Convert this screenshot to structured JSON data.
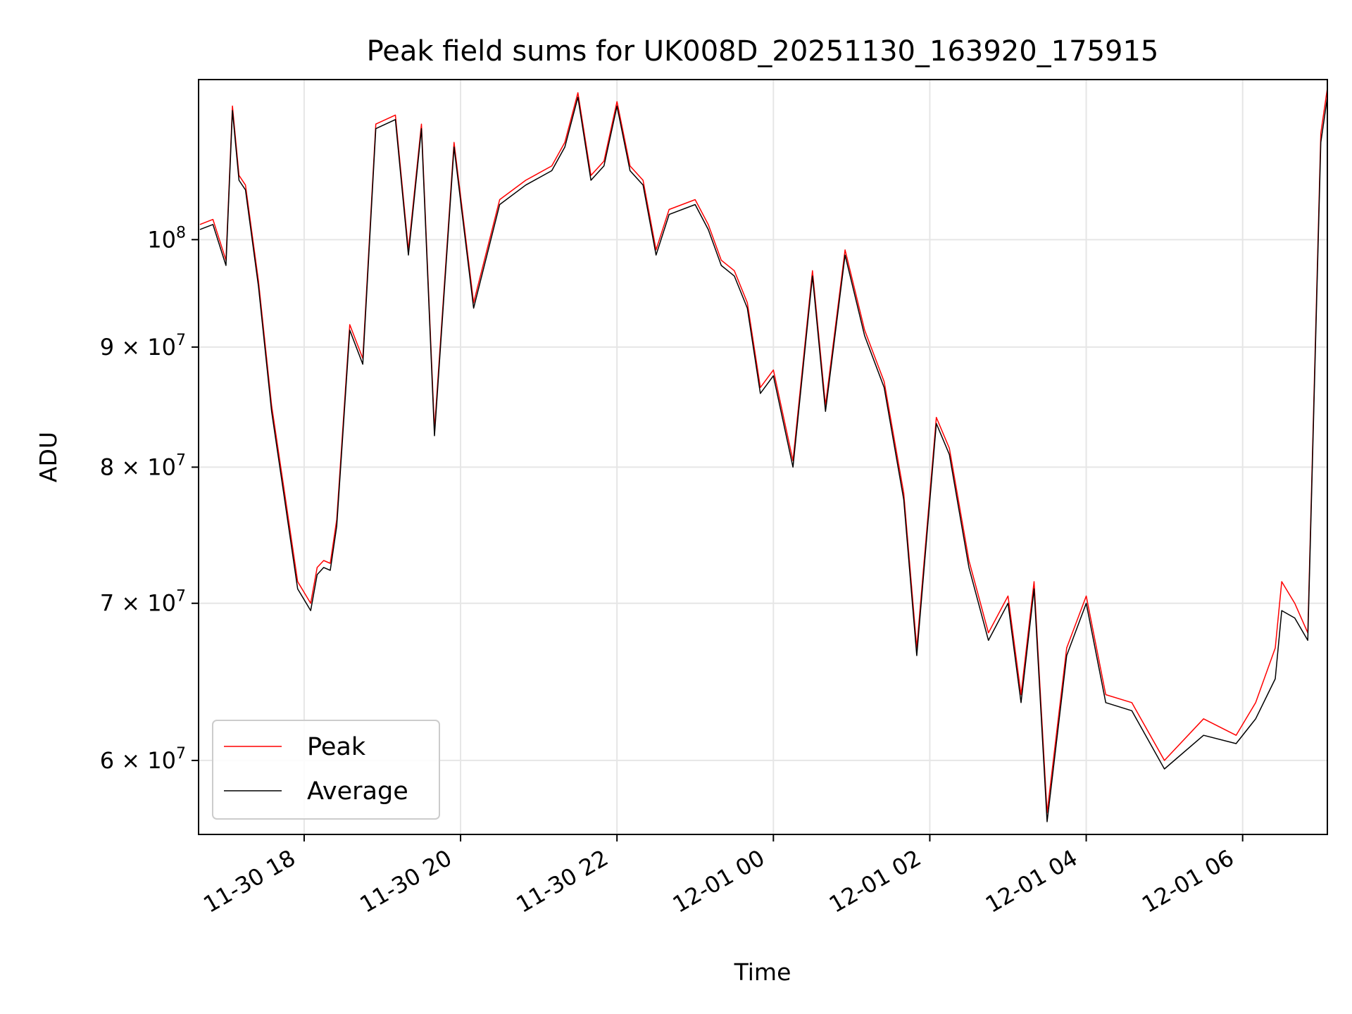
{
  "chart_data": {
    "type": "line",
    "title": "Peak field sums for UK008D_20251130_163920_175915",
    "xlabel": "Time",
    "ylabel": "ADU",
    "x_range": [
      "2025-11-30 16:39",
      "2025-12-01 07:05"
    ],
    "y_range": [
      55800000,
      117000000
    ],
    "y_scale": "log",
    "grid": true,
    "legend_position": "lower-left",
    "x_ticks": [
      {
        "value": "2025-11-30 18:00",
        "label": "11-30 18"
      },
      {
        "value": "2025-11-30 20:00",
        "label": "11-30 20"
      },
      {
        "value": "2025-11-30 22:00",
        "label": "11-30 22"
      },
      {
        "value": "2025-12-01 00:00",
        "label": "12-01 00"
      },
      {
        "value": "2025-12-01 02:00",
        "label": "12-01 02"
      },
      {
        "value": "2025-12-01 04:00",
        "label": "12-01 04"
      },
      {
        "value": "2025-12-01 06:00",
        "label": "12-01 06"
      }
    ],
    "y_ticks": [
      {
        "value": 60000000,
        "mantissa": "6",
        "base": "10",
        "exp": "7"
      },
      {
        "value": 70000000,
        "mantissa": "7",
        "base": "10",
        "exp": "7"
      },
      {
        "value": 80000000,
        "mantissa": "8",
        "base": "10",
        "exp": "7"
      },
      {
        "value": 90000000,
        "mantissa": "9",
        "base": "10",
        "exp": "7"
      },
      {
        "value": 100000000,
        "mantissa": "",
        "base": "10",
        "exp": "8"
      }
    ],
    "series": [
      {
        "name": "Peak",
        "color": "#ff0000",
        "x": [
          "2025-11-30 16:40",
          "2025-11-30 16:50",
          "2025-11-30 17:00",
          "2025-11-30 17:05",
          "2025-11-30 17:10",
          "2025-11-30 17:15",
          "2025-11-30 17:25",
          "2025-11-30 17:35",
          "2025-11-30 17:45",
          "2025-11-30 17:55",
          "2025-11-30 18:05",
          "2025-11-30 18:10",
          "2025-11-30 18:15",
          "2025-11-30 18:20",
          "2025-11-30 18:25",
          "2025-11-30 18:35",
          "2025-11-30 18:45",
          "2025-11-30 18:55",
          "2025-11-30 19:10",
          "2025-11-30 19:20",
          "2025-11-30 19:30",
          "2025-11-30 19:40",
          "2025-11-30 19:55",
          "2025-11-30 20:10",
          "2025-11-30 20:30",
          "2025-11-30 20:50",
          "2025-11-30 21:10",
          "2025-11-30 21:20",
          "2025-11-30 21:30",
          "2025-11-30 21:40",
          "2025-11-30 21:50",
          "2025-11-30 22:00",
          "2025-11-30 22:10",
          "2025-11-30 22:20",
          "2025-11-30 22:30",
          "2025-11-30 22:40",
          "2025-11-30 23:00",
          "2025-11-30 23:10",
          "2025-11-30 23:20",
          "2025-11-30 23:30",
          "2025-11-30 23:40",
          "2025-11-30 23:50",
          "2025-12-01 00:00",
          "2025-12-01 00:15",
          "2025-12-01 00:30",
          "2025-12-01 00:40",
          "2025-12-01 00:55",
          "2025-12-01 01:10",
          "2025-12-01 01:25",
          "2025-12-01 01:40",
          "2025-12-01 01:50",
          "2025-12-01 02:05",
          "2025-12-01 02:15",
          "2025-12-01 02:30",
          "2025-12-01 02:45",
          "2025-12-01 03:00",
          "2025-12-01 03:10",
          "2025-12-01 03:20",
          "2025-12-01 03:30",
          "2025-12-01 03:45",
          "2025-12-01 04:00",
          "2025-12-01 04:15",
          "2025-12-01 04:35",
          "2025-12-01 05:00",
          "2025-12-01 05:30",
          "2025-12-01 05:55",
          "2025-12-01 06:10",
          "2025-12-01 06:25",
          "2025-12-01 06:30",
          "2025-12-01 06:40",
          "2025-12-01 06:50",
          "2025-12-01 07:00",
          "2025-12-01 07:05"
        ],
        "y": [
          101500000,
          102000000,
          98000000,
          114000000,
          106500000,
          105500000,
          96000000,
          85000000,
          78000000,
          71500000,
          70000000,
          72500000,
          73000000,
          72800000,
          76000000,
          92000000,
          89000000,
          112000000,
          113000000,
          99000000,
          112000000,
          83000000,
          110000000,
          94000000,
          104000000,
          106000000,
          107500000,
          110000000,
          115500000,
          106500000,
          108000000,
          114500000,
          107500000,
          106000000,
          99000000,
          103000000,
          104000000,
          101500000,
          98000000,
          97000000,
          94000000,
          86500000,
          88000000,
          80500000,
          97000000,
          85000000,
          99000000,
          91500000,
          87000000,
          78000000,
          67000000,
          84000000,
          81500000,
          73000000,
          68000000,
          70500000,
          64000000,
          71500000,
          57000000,
          67000000,
          70500000,
          64000000,
          63500000,
          60000000,
          62500000,
          61500000,
          63500000,
          67000000,
          71500000,
          70000000,
          68000000,
          111000000,
          116000000
        ]
      },
      {
        "name": "Average",
        "color": "#000000",
        "x": [
          "2025-11-30 16:40",
          "2025-11-30 16:50",
          "2025-11-30 17:00",
          "2025-11-30 17:05",
          "2025-11-30 17:10",
          "2025-11-30 17:15",
          "2025-11-30 17:25",
          "2025-11-30 17:35",
          "2025-11-30 17:45",
          "2025-11-30 17:55",
          "2025-11-30 18:05",
          "2025-11-30 18:10",
          "2025-11-30 18:15",
          "2025-11-30 18:20",
          "2025-11-30 18:25",
          "2025-11-30 18:35",
          "2025-11-30 18:45",
          "2025-11-30 18:55",
          "2025-11-30 19:10",
          "2025-11-30 19:20",
          "2025-11-30 19:30",
          "2025-11-30 19:40",
          "2025-11-30 19:55",
          "2025-11-30 20:10",
          "2025-11-30 20:30",
          "2025-11-30 20:50",
          "2025-11-30 21:10",
          "2025-11-30 21:20",
          "2025-11-30 21:30",
          "2025-11-30 21:40",
          "2025-11-30 21:50",
          "2025-11-30 22:00",
          "2025-11-30 22:10",
          "2025-11-30 22:20",
          "2025-11-30 22:30",
          "2025-11-30 22:40",
          "2025-11-30 23:00",
          "2025-11-30 23:10",
          "2025-11-30 23:20",
          "2025-11-30 23:30",
          "2025-11-30 23:40",
          "2025-11-30 23:50",
          "2025-12-01 00:00",
          "2025-12-01 00:15",
          "2025-12-01 00:30",
          "2025-12-01 00:40",
          "2025-12-01 00:55",
          "2025-12-01 01:10",
          "2025-12-01 01:25",
          "2025-12-01 01:40",
          "2025-12-01 01:50",
          "2025-12-01 02:05",
          "2025-12-01 02:15",
          "2025-12-01 02:30",
          "2025-12-01 02:45",
          "2025-12-01 03:00",
          "2025-12-01 03:10",
          "2025-12-01 03:20",
          "2025-12-01 03:30",
          "2025-12-01 03:45",
          "2025-12-01 04:00",
          "2025-12-01 04:15",
          "2025-12-01 04:35",
          "2025-12-01 05:00",
          "2025-12-01 05:30",
          "2025-12-01 05:55",
          "2025-12-01 06:10",
          "2025-12-01 06:25",
          "2025-12-01 06:30",
          "2025-12-01 06:40",
          "2025-12-01 06:50",
          "2025-12-01 07:00",
          "2025-12-01 07:05"
        ],
        "y": [
          101000000,
          101500000,
          97500000,
          113500000,
          106000000,
          105000000,
          95500000,
          84500000,
          77500000,
          71000000,
          69500000,
          72000000,
          72500000,
          72300000,
          75500000,
          91500000,
          88500000,
          111500000,
          112500000,
          98500000,
          111500000,
          82500000,
          109500000,
          93500000,
          103500000,
          105500000,
          107000000,
          109500000,
          115000000,
          106000000,
          107500000,
          114000000,
          107000000,
          105500000,
          98500000,
          102500000,
          103500000,
          101000000,
          97500000,
          96500000,
          93500000,
          86000000,
          87500000,
          80000000,
          96500000,
          84500000,
          98500000,
          91000000,
          86500000,
          77500000,
          66500000,
          83500000,
          81000000,
          72500000,
          67500000,
          70000000,
          63500000,
          71000000,
          56500000,
          66500000,
          70000000,
          63500000,
          63000000,
          59500000,
          61500000,
          61000000,
          62500000,
          65000000,
          69500000,
          69000000,
          67500000,
          110000000,
          115000000
        ]
      }
    ]
  }
}
